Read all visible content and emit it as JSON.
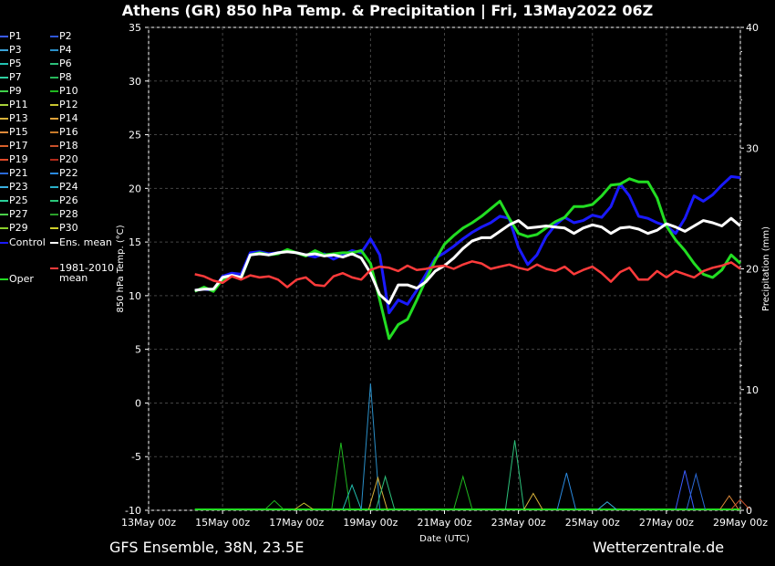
{
  "header": {
    "title": "Athens  (GR)  850 hPa Temp. & Precipitation | Fri, 13May2022 06Z"
  },
  "footer": {
    "left": "GFS Ensemble, 38N, 23.5E",
    "right": "Wetterzentrale.de"
  },
  "legend": [
    {
      "label": "P1",
      "color": "#3b5bff"
    },
    {
      "label": "P2",
      "color": "#2f56d8"
    },
    {
      "label": "P3",
      "color": "#3aa2d8"
    },
    {
      "label": "P4",
      "color": "#2a8fc8"
    },
    {
      "label": "P5",
      "color": "#22c2b2"
    },
    {
      "label": "P6",
      "color": "#2cc07a"
    },
    {
      "label": "P7",
      "color": "#2ed0a0"
    },
    {
      "label": "P8",
      "color": "#27b85a"
    },
    {
      "label": "P9",
      "color": "#3fd14a"
    },
    {
      "label": "P10",
      "color": "#1fb81f"
    },
    {
      "label": "P11",
      "color": "#a8d23a"
    },
    {
      "label": "P12",
      "color": "#c9c52f"
    },
    {
      "label": "P13",
      "color": "#d9b33a"
    },
    {
      "label": "P14",
      "color": "#e0a23a"
    },
    {
      "label": "P15",
      "color": "#e08a3a"
    },
    {
      "label": "P16",
      "color": "#c87a2a"
    },
    {
      "label": "P17",
      "color": "#d8602a"
    },
    {
      "label": "P18",
      "color": "#c8502a"
    },
    {
      "label": "P19",
      "color": "#e04a2a"
    },
    {
      "label": "P20",
      "color": "#b02a1a"
    },
    {
      "label": "P21",
      "color": "#2a6ad8"
    },
    {
      "label": "P22",
      "color": "#2a8ae0"
    },
    {
      "label": "P23",
      "color": "#3ab0e0"
    },
    {
      "label": "P24",
      "color": "#2ab0c8"
    },
    {
      "label": "P25",
      "color": "#2ad09a"
    },
    {
      "label": "P26",
      "color": "#2ac87a"
    },
    {
      "label": "P27",
      "color": "#4ad04a"
    },
    {
      "label": "P28",
      "color": "#2aa02a"
    },
    {
      "label": "P29",
      "color": "#8ad02a"
    },
    {
      "label": "P30",
      "color": "#d0d02a"
    },
    {
      "label": "Control",
      "color": "#1a1aff"
    },
    {
      "label": "Ens. mean",
      "color": "#ffffff"
    },
    {
      "label": "1981-2010 mean",
      "color": "#ff3b3b"
    },
    {
      "label": "Oper",
      "color": "#22dd22"
    }
  ],
  "chart_data": {
    "type": "line",
    "ylabel": "850 hPa Temp. (°C)",
    "y2label": "Precipitation (mm)",
    "xlabel": "Date (UTC)",
    "ylim": [
      -10,
      35
    ],
    "y2lim": [
      0,
      40
    ],
    "yticks": [
      -10,
      -5,
      0,
      5,
      10,
      15,
      20,
      25,
      30,
      35
    ],
    "y2ticks": [
      0,
      10,
      20,
      30,
      40
    ],
    "xlim": [
      0,
      16
    ],
    "xticks": [
      {
        "x": 0,
        "label": "13May 00z"
      },
      {
        "x": 2,
        "label": "15May 00z"
      },
      {
        "x": 4,
        "label": "17May 00z"
      },
      {
        "x": 6,
        "label": "19May 00z"
      },
      {
        "x": 8,
        "label": "21May 00z"
      },
      {
        "x": 10,
        "label": "23May 00z"
      },
      {
        "x": 12,
        "label": "25May 00z"
      },
      {
        "x": 14,
        "label": "27May 00z"
      },
      {
        "x": 16,
        "label": "29May 00z"
      }
    ],
    "grid": true,
    "x": [
      1.25,
      1.5,
      1.75,
      2,
      2.25,
      2.5,
      2.75,
      3,
      3.25,
      3.5,
      3.75,
      4,
      4.25,
      4.5,
      4.75,
      5,
      5.25,
      5.5,
      5.75,
      6,
      6.25,
      6.5,
      6.75,
      7,
      7.25,
      7.5,
      7.75,
      8,
      8.25,
      8.5,
      8.75,
      9,
      9.25,
      9.5,
      9.75,
      10,
      10.25,
      10.5,
      10.75,
      11,
      11.25,
      11.5,
      11.75,
      12,
      12.25,
      12.5,
      12.75,
      13,
      13.25,
      13.5,
      13.75,
      14,
      14.25,
      14.5,
      14.75,
      15,
      15.25,
      15.5,
      15.75,
      16
    ],
    "series": [
      {
        "name": "Control",
        "color": "#1a1aff",
        "width": 3,
        "values": [
          10.5,
          10.6,
          10.5,
          11.8,
          12.1,
          12.0,
          14.0,
          14.1,
          13.9,
          14.0,
          14.2,
          14.0,
          13.8,
          13.6,
          13.9,
          13.4,
          13.8,
          14.2,
          14.0,
          15.3,
          13.8,
          8.4,
          9.6,
          9.2,
          10.5,
          12.0,
          13.5,
          14.0,
          14.6,
          15.3,
          15.9,
          16.4,
          16.8,
          17.4,
          17.2,
          14.5,
          12.9,
          13.8,
          15.5,
          16.6,
          17.3,
          16.8,
          17.0,
          17.5,
          17.3,
          18.3,
          20.4,
          19.3,
          17.4,
          17.2,
          16.8,
          16.5,
          15.8,
          17.2,
          19.3,
          18.8,
          19.4,
          20.3,
          21.1,
          21.0
        ]
      },
      {
        "name": "Oper",
        "color": "#22dd22",
        "width": 3,
        "values": [
          10.4,
          10.8,
          10.4,
          11.5,
          11.9,
          11.6,
          13.8,
          14.0,
          13.8,
          13.9,
          14.3,
          14.0,
          13.7,
          14.2,
          13.8,
          13.9,
          14.0,
          14.0,
          14.2,
          13.0,
          9.6,
          6.0,
          7.3,
          7.8,
          9.6,
          11.5,
          13.3,
          14.8,
          15.6,
          16.3,
          16.8,
          17.4,
          18.1,
          18.8,
          17.2,
          15.8,
          15.5,
          15.7,
          16.3,
          16.9,
          17.3,
          18.3,
          18.3,
          18.5,
          19.3,
          20.3,
          20.4,
          20.9,
          20.6,
          20.6,
          19.1,
          16.5,
          15.2,
          14.2,
          13.0,
          12.0,
          11.7,
          12.4,
          13.8,
          13.0
        ]
      },
      {
        "name": "Ens. mean",
        "color": "#ffffff",
        "width": 3,
        "values": [
          10.5,
          10.6,
          10.6,
          11.7,
          11.9,
          11.7,
          13.8,
          13.9,
          13.8,
          14.0,
          14.1,
          14.0,
          13.8,
          13.9,
          13.7,
          13.8,
          13.6,
          13.9,
          13.5,
          12.1,
          10.1,
          9.3,
          11.0,
          11.0,
          10.7,
          11.3,
          12.3,
          12.8,
          13.5,
          14.4,
          15.1,
          15.4,
          15.4,
          16.0,
          16.6,
          17.0,
          16.3,
          16.4,
          16.5,
          16.4,
          16.3,
          15.8,
          16.3,
          16.6,
          16.4,
          15.8,
          16.3,
          16.4,
          16.2,
          15.8,
          16.1,
          16.7,
          16.4,
          16.0,
          16.5,
          17.0,
          16.8,
          16.5,
          17.2,
          16.5
        ]
      },
      {
        "name": "1981-2010 mean",
        "color": "#ff3b3b",
        "width": 2.5,
        "values": [
          12.0,
          11.8,
          11.4,
          11.2,
          11.8,
          11.5,
          11.9,
          11.7,
          11.8,
          11.5,
          10.8,
          11.5,
          11.7,
          11.0,
          10.9,
          11.8,
          12.1,
          11.7,
          11.5,
          12.4,
          12.7,
          12.6,
          12.3,
          12.8,
          12.4,
          12.5,
          12.7,
          12.8,
          12.5,
          12.9,
          13.2,
          13.0,
          12.5,
          12.7,
          12.9,
          12.6,
          12.4,
          12.9,
          12.5,
          12.3,
          12.7,
          12.0,
          12.4,
          12.7,
          12.1,
          11.3,
          12.2,
          12.6,
          11.5,
          11.5,
          12.3,
          11.7,
          12.3,
          12.0,
          11.7,
          12.3,
          12.6,
          12.8,
          13.1,
          12.5
        ]
      }
    ],
    "precip_spikes": [
      {
        "x": 3.4,
        "value": 0.8,
        "color": "#1fb81f"
      },
      {
        "x": 4.2,
        "value": 0.6,
        "color": "#c9c52f"
      },
      {
        "x": 5.2,
        "value": 5.6,
        "color": "#1fb81f"
      },
      {
        "x": 5.5,
        "value": 2.1,
        "color": "#22c2b2"
      },
      {
        "x": 6.0,
        "value": 10.5,
        "color": "#2a8fc8"
      },
      {
        "x": 6.2,
        "value": 2.7,
        "color": "#d9b33a"
      },
      {
        "x": 6.4,
        "value": 2.8,
        "color": "#2cc07a"
      },
      {
        "x": 8.5,
        "value": 2.8,
        "color": "#1fb81f"
      },
      {
        "x": 9.9,
        "value": 5.8,
        "color": "#2cc07a"
      },
      {
        "x": 10.4,
        "value": 1.4,
        "color": "#d9b33a"
      },
      {
        "x": 11.3,
        "value": 3.1,
        "color": "#2a8ae0"
      },
      {
        "x": 12.4,
        "value": 0.7,
        "color": "#3ab0e0"
      },
      {
        "x": 14.5,
        "value": 3.3,
        "color": "#3b5bff"
      },
      {
        "x": 14.8,
        "value": 3.0,
        "color": "#2a6ad8"
      },
      {
        "x": 15.7,
        "value": 1.2,
        "color": "#e08a3a"
      },
      {
        "x": 16.0,
        "value": 0.9,
        "color": "#c8502a"
      }
    ]
  }
}
